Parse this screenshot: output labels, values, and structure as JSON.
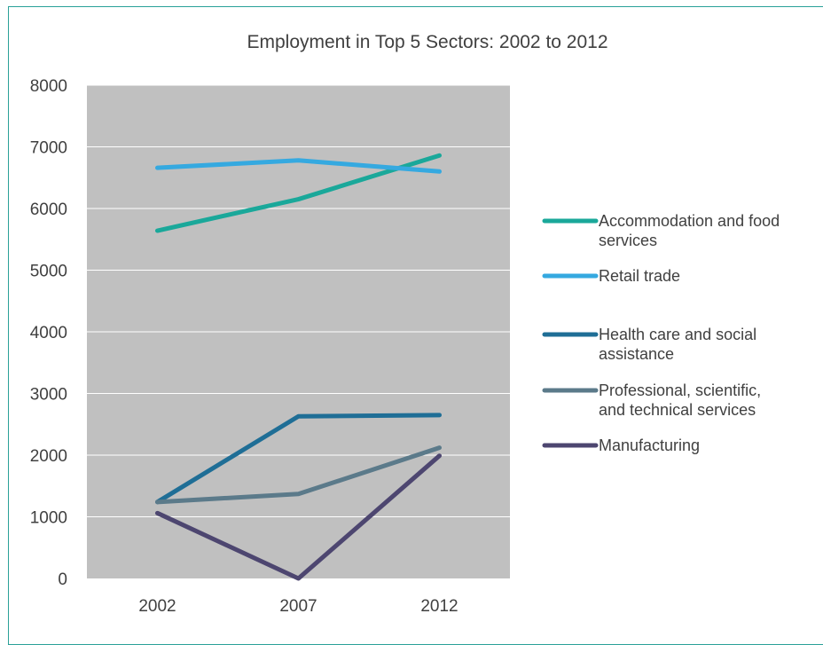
{
  "chart_data": {
    "type": "line",
    "title": "Employment in Top 5 Sectors: 2002 to 2012",
    "xlabel": "",
    "ylabel": "",
    "categories": [
      "2002",
      "2007",
      "2012"
    ],
    "ylim": [
      0,
      8000
    ],
    "yticks": [
      "0",
      "1000",
      "2000",
      "3000",
      "4000",
      "5000",
      "6000",
      "7000",
      "8000"
    ],
    "grid": true,
    "legend_position": "right",
    "plot_background": "#c0c0c0",
    "series": [
      {
        "name": "Accommodation and food services",
        "legend_lines": [
          "Accommodation and food",
          "services"
        ],
        "color": "#1aa89a",
        "values": [
          5640,
          6150,
          6860
        ]
      },
      {
        "name": "Retail trade",
        "legend_lines": [
          "Retail trade"
        ],
        "color": "#35a9e0",
        "values": [
          6660,
          6780,
          6600
        ]
      },
      {
        "name": "Health care and social assistance",
        "legend_lines": [
          "Health care and social",
          "assistance"
        ],
        "color": "#1f6e96",
        "values": [
          1240,
          2630,
          2650
        ]
      },
      {
        "name": "Professional, scientific, and technical services",
        "legend_lines": [
          "Professional, scientific,",
          "and technical services"
        ],
        "color": "#5b7a8a",
        "values": [
          1240,
          1370,
          2120
        ]
      },
      {
        "name": "Manufacturing",
        "legend_lines": [
          "Manufacturing"
        ],
        "color": "#4d4670",
        "values": [
          1060,
          0,
          1990
        ]
      }
    ]
  }
}
